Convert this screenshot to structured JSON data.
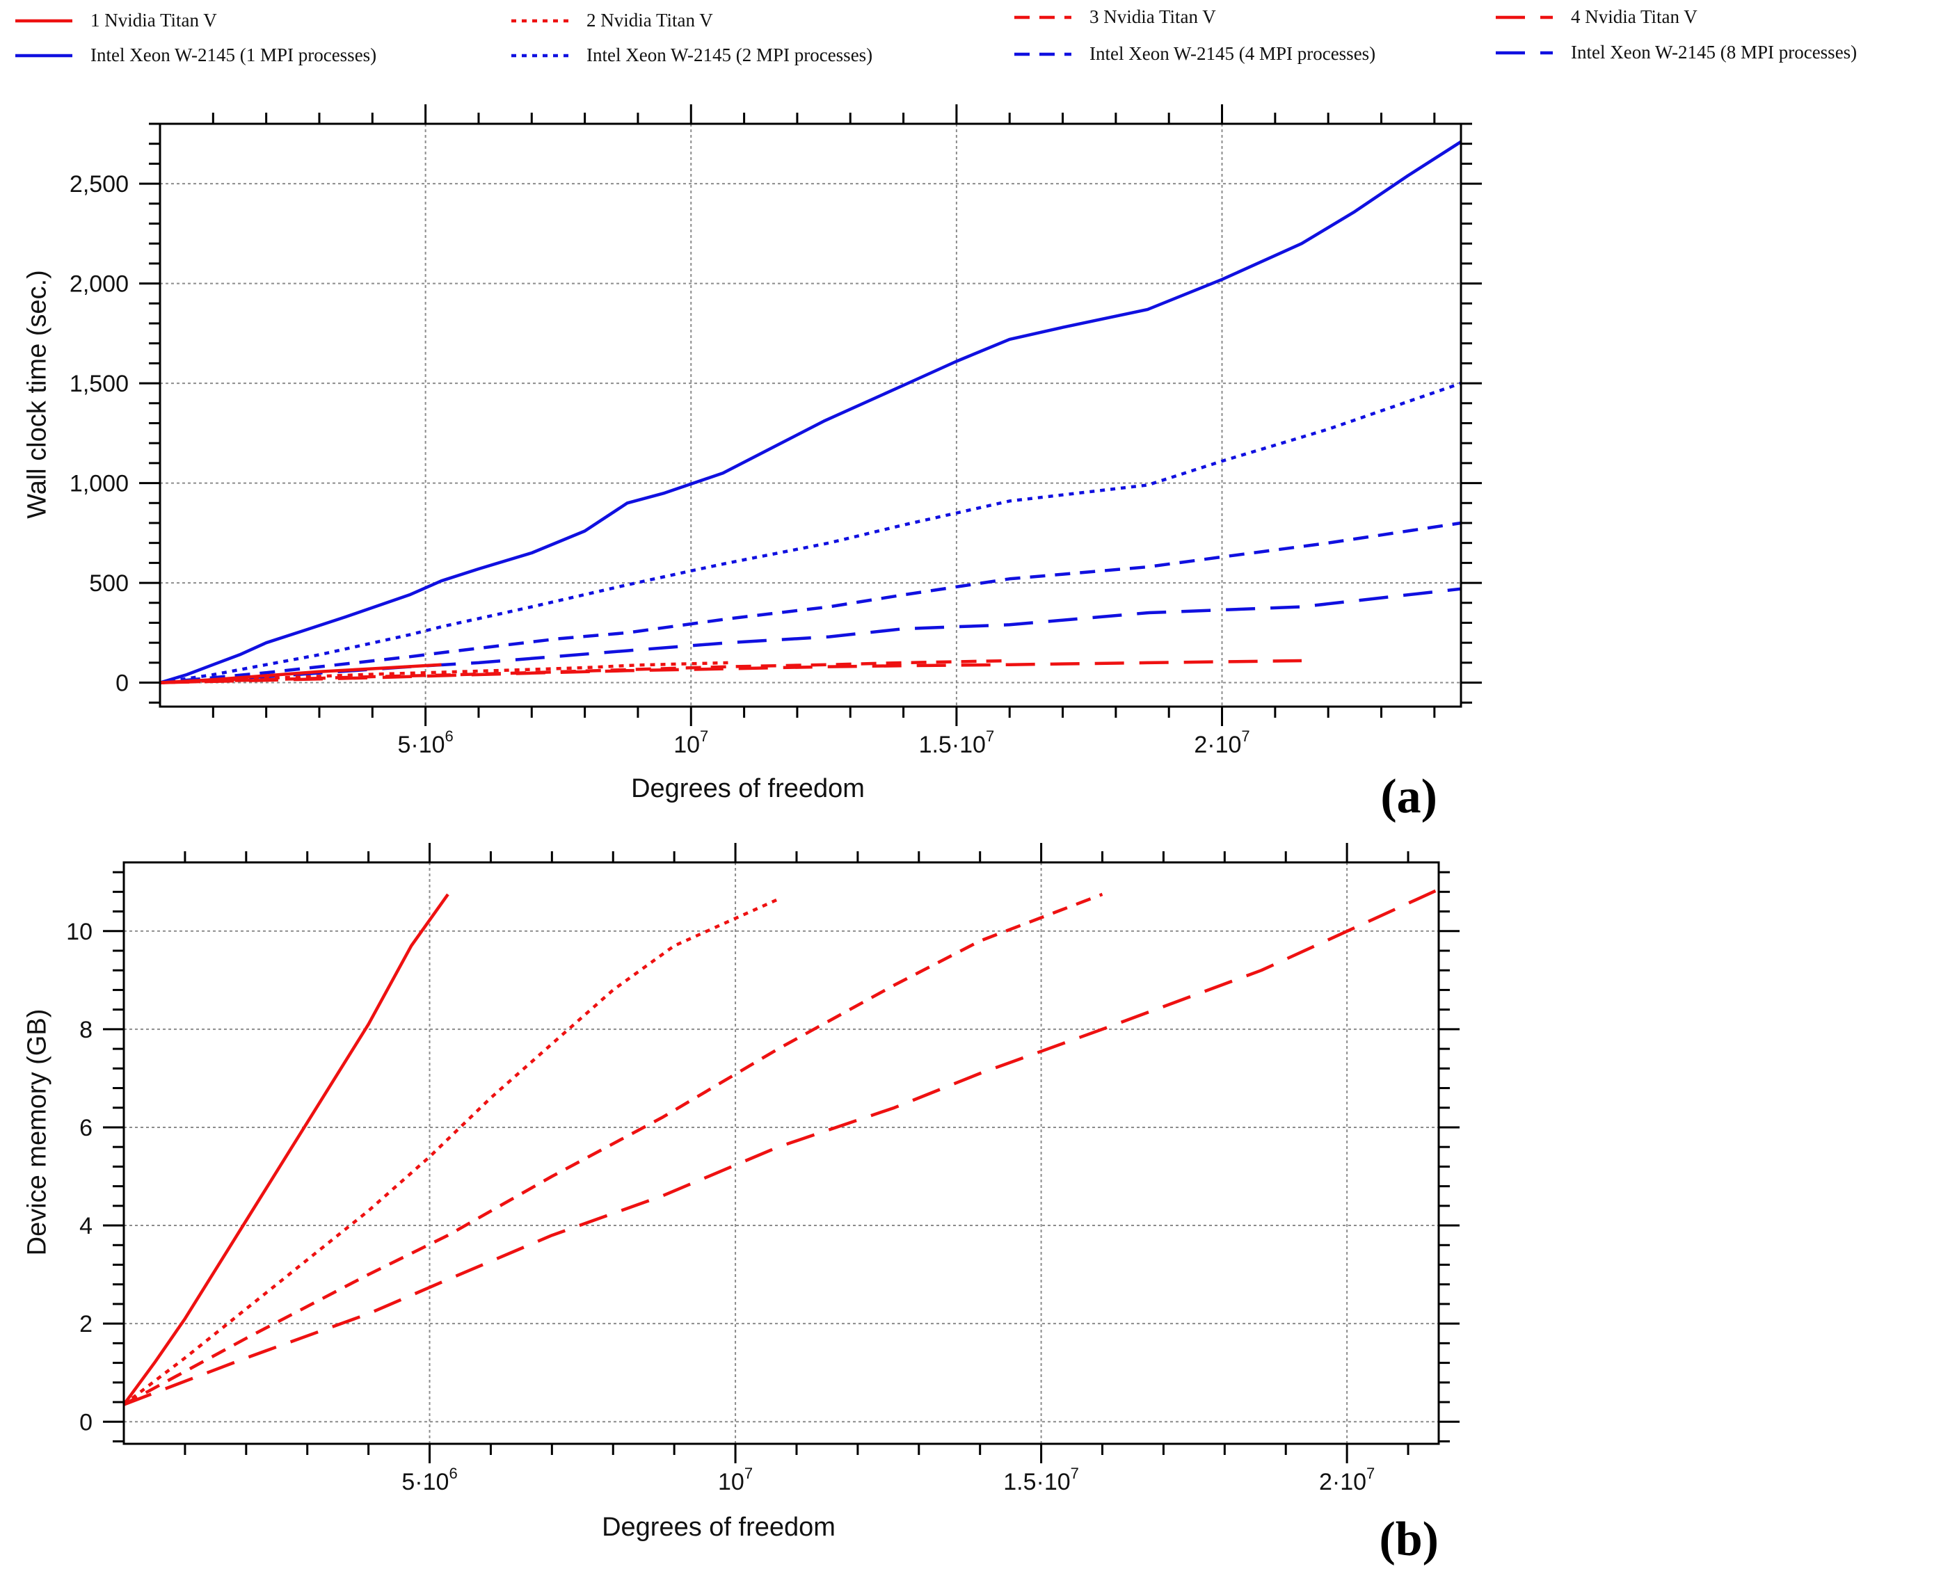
{
  "colors": {
    "gpu": "#ee1111",
    "cpu": "#1010e0"
  },
  "legend": [
    {
      "label": "1 Nvidia Titan V",
      "color": "#ee1111",
      "dash": "solid"
    },
    {
      "label": "Intel Xeon W-2145 (1 MPI processes)",
      "color": "#1010e0",
      "dash": "solid"
    },
    {
      "label": "2 Nvidia Titan V",
      "color": "#ee1111",
      "dash": "dot"
    },
    {
      "label": "Intel Xeon W-2145 (2 MPI processes)",
      "color": "#1010e0",
      "dash": "dot"
    },
    {
      "label": "3 Nvidia Titan V",
      "color": "#ee1111",
      "dash": "dash"
    },
    {
      "label": "Intel Xeon W-2145 (4 MPI processes)",
      "color": "#1010e0",
      "dash": "dash"
    },
    {
      "label": "4 Nvidia Titan V",
      "color": "#ee1111",
      "dash": "longdash"
    },
    {
      "label": "Intel Xeon W-2145 (8 MPI processes)",
      "color": "#1010e0",
      "dash": "longdash"
    }
  ],
  "chart_data": [
    {
      "panel": "(a)",
      "type": "line",
      "xlabel": "Degrees of freedom",
      "ylabel": "Wall clock time (sec.)",
      "xlim": [
        0,
        24500000
      ],
      "ylim": [
        -120,
        2800
      ],
      "x_ticks": [
        {
          "value": 5000000,
          "base": "5·10",
          "exp": "6"
        },
        {
          "value": 10000000,
          "base": "10",
          "exp": "7"
        },
        {
          "value": 15000000,
          "base": "1.5·10",
          "exp": "7"
        },
        {
          "value": 20000000,
          "base": "2·10",
          "exp": "7"
        }
      ],
      "y_ticks": [
        {
          "value": 0,
          "label": "0"
        },
        {
          "value": 500,
          "label": "500"
        },
        {
          "value": 1000,
          "label": "1,000"
        },
        {
          "value": 1500,
          "label": "1,500"
        },
        {
          "value": 2000,
          "label": "2,000"
        },
        {
          "value": 2500,
          "label": "2,500"
        }
      ],
      "series": [
        {
          "name": "Intel Xeon W-2145 (1 MPI processes)",
          "color": "#1010e0",
          "dash": "solid",
          "x": [
            0,
            500000,
            1000000,
            1500000,
            2000000,
            2700000,
            3500000,
            4700000,
            5300000,
            6000000,
            7000000,
            8000000,
            8800000,
            9500000,
            10600000,
            12500000,
            14000000,
            15000000,
            16000000,
            17000000,
            18600000,
            20000000,
            21500000,
            22500000,
            23500000,
            24500000
          ],
          "y": [
            0,
            40,
            90,
            140,
            200,
            260,
            330,
            440,
            510,
            570,
            650,
            760,
            900,
            950,
            1050,
            1310,
            1490,
            1610,
            1720,
            1780,
            1870,
            2020,
            2200,
            2360,
            2540,
            2710
          ]
        },
        {
          "name": "Intel Xeon W-2145 (2 MPI processes)",
          "color": "#1010e0",
          "dash": "dot",
          "x": [
            0,
            1000000,
            2000000,
            3000000,
            4700000,
            5300000,
            7000000,
            8800000,
            10000000,
            10700000,
            12600000,
            14000000,
            16000000,
            18600000,
            20000000,
            22000000,
            24500000
          ],
          "y": [
            0,
            40,
            90,
            140,
            240,
            280,
            380,
            490,
            560,
            600,
            700,
            790,
            910,
            990,
            1110,
            1270,
            1500
          ]
        },
        {
          "name": "Intel Xeon W-2145 (4 MPI processes)",
          "color": "#1010e0",
          "dash": "dash",
          "x": [
            0,
            2000000,
            4700000,
            5300000,
            7500000,
            8800000,
            10700000,
            12600000,
            14000000,
            16000000,
            18600000,
            20000000,
            22000000,
            24500000
          ],
          "y": [
            0,
            50,
            130,
            150,
            220,
            250,
            320,
            380,
            440,
            520,
            580,
            630,
            700,
            800
          ]
        },
        {
          "name": "Intel Xeon W-2145 (8 MPI processes)",
          "color": "#1010e0",
          "dash": "longdash",
          "x": [
            0,
            2000000,
            4700000,
            6000000,
            8800000,
            10700000,
            12600000,
            14000000,
            16000000,
            18600000,
            21500000,
            24500000
          ],
          "y": [
            0,
            30,
            80,
            100,
            160,
            200,
            230,
            270,
            290,
            350,
            380,
            470
          ]
        },
        {
          "name": "1 Nvidia Titan V",
          "color": "#ee1111",
          "dash": "solid",
          "x": [
            0,
            1000000,
            2000000,
            3000000,
            4000000,
            5300000
          ],
          "y": [
            0,
            15,
            35,
            55,
            70,
            90
          ]
        },
        {
          "name": "2 Nvidia Titan V",
          "color": "#ee1111",
          "dash": "dot",
          "x": [
            0,
            1000000,
            2000000,
            3000000,
            4000000,
            5300000,
            6500000,
            8000000,
            9000000,
            10700000
          ],
          "y": [
            0,
            10,
            22,
            32,
            42,
            52,
            62,
            75,
            88,
            100
          ]
        },
        {
          "name": "3 Nvidia Titan V",
          "color": "#ee1111",
          "dash": "dash",
          "x": [
            0,
            2000000,
            3000000,
            4000000,
            5300000,
            7000000,
            8800000,
            10700000,
            12600000,
            14000000,
            16000000
          ],
          "y": [
            0,
            15,
            22,
            30,
            38,
            50,
            65,
            80,
            90,
            100,
            110
          ]
        },
        {
          "name": "4 Nvidia Titan V",
          "color": "#ee1111",
          "dash": "longdash",
          "x": [
            0,
            2000000,
            4000000,
            5300000,
            7000000,
            8800000,
            10700000,
            12600000,
            14000000,
            16000000,
            18600000,
            21500000
          ],
          "y": [
            0,
            12,
            25,
            35,
            48,
            60,
            70,
            80,
            85,
            90,
            100,
            110
          ]
        }
      ]
    },
    {
      "panel": "(b)",
      "type": "line",
      "xlabel": "Degrees of freedom",
      "ylabel": "Device memory (GB)",
      "xlim": [
        0,
        21500000
      ],
      "ylim": [
        -0.45,
        11.4
      ],
      "x_ticks": [
        {
          "value": 5000000,
          "base": "5·10",
          "exp": "6"
        },
        {
          "value": 10000000,
          "base": "10",
          "exp": "7"
        },
        {
          "value": 15000000,
          "base": "1.5·10",
          "exp": "7"
        },
        {
          "value": 20000000,
          "base": "2·10",
          "exp": "7"
        }
      ],
      "y_ticks": [
        {
          "value": 0,
          "label": "0"
        },
        {
          "value": 2,
          "label": "2"
        },
        {
          "value": 4,
          "label": "4"
        },
        {
          "value": 6,
          "label": "6"
        },
        {
          "value": 8,
          "label": "8"
        },
        {
          "value": 10,
          "label": "10"
        }
      ],
      "series": [
        {
          "name": "1 Nvidia Titan V",
          "color": "#ee1111",
          "dash": "solid",
          "x": [
            0,
            500000,
            1000000,
            2000000,
            3000000,
            4000000,
            4700000,
            5300000
          ],
          "y": [
            0.35,
            1.2,
            2.1,
            4.1,
            6.1,
            8.1,
            9.7,
            10.75
          ]
        },
        {
          "name": "2 Nvidia Titan V",
          "color": "#ee1111",
          "dash": "dot",
          "x": [
            0,
            1000000,
            2000000,
            3000000,
            4000000,
            5000000,
            6000000,
            7000000,
            8000000,
            9000000,
            10700000
          ],
          "y": [
            0.35,
            1.3,
            2.3,
            3.3,
            4.3,
            5.4,
            6.6,
            7.7,
            8.8,
            9.7,
            10.65
          ]
        },
        {
          "name": "3 Nvidia Titan V",
          "color": "#ee1111",
          "dash": "dash",
          "x": [
            0,
            2000000,
            4000000,
            5300000,
            7000000,
            8800000,
            10700000,
            12600000,
            14000000,
            16000000
          ],
          "y": [
            0.35,
            1.7,
            3.0,
            3.8,
            5.0,
            6.2,
            7.6,
            8.9,
            9.8,
            10.75
          ]
        },
        {
          "name": "4 Nvidia Titan V",
          "color": "#ee1111",
          "dash": "longdash",
          "x": [
            0,
            2000000,
            4000000,
            5300000,
            7000000,
            8800000,
            10700000,
            12600000,
            14000000,
            16000000,
            18600000,
            21500000
          ],
          "y": [
            0.35,
            1.3,
            2.2,
            2.9,
            3.8,
            4.6,
            5.6,
            6.4,
            7.1,
            8.0,
            9.2,
            10.85
          ]
        }
      ]
    }
  ]
}
